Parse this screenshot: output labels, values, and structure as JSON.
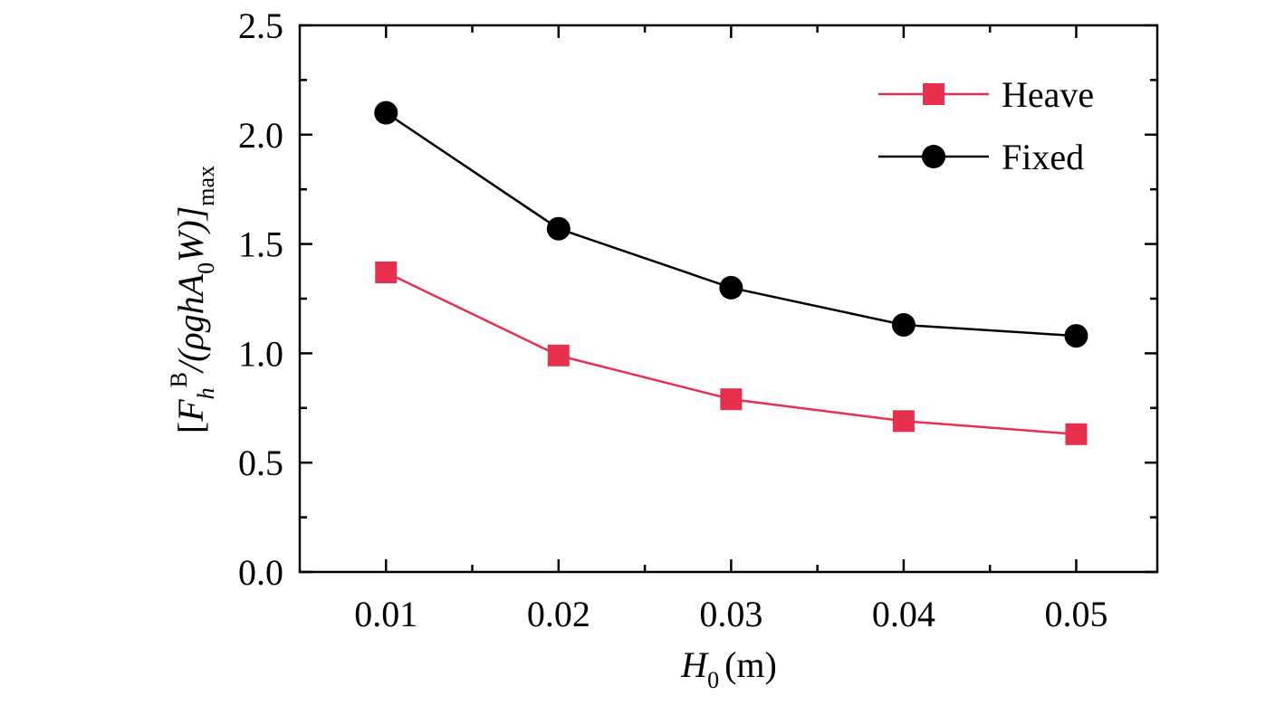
{
  "chart_data": {
    "type": "line",
    "x": [
      0.01,
      0.02,
      0.03,
      0.04,
      0.05
    ],
    "series": [
      {
        "name": "Heave",
        "values": [
          1.37,
          0.99,
          0.79,
          0.69,
          0.63
        ],
        "color": "#e8304e",
        "marker": "square"
      },
      {
        "name": "Fixed",
        "values": [
          2.1,
          1.57,
          1.3,
          1.13,
          1.08
        ],
        "color": "#000000",
        "marker": "circle"
      }
    ],
    "xticks": [
      "0.01",
      "0.02",
      "0.03",
      "0.04",
      "0.05"
    ],
    "yticks": [
      "0.0",
      "0.5",
      "1.0",
      "1.5",
      "2.0",
      "2.5"
    ],
    "xlim": [
      0.005,
      0.0547
    ],
    "ylim": [
      0,
      2.5
    ],
    "xlabel": {
      "symbol": "H",
      "subscript": "0",
      "unit": "(m)"
    },
    "ylabel": {
      "open": "[",
      "symbol": "F",
      "subscript": "h",
      "superscript": "B",
      "mid": "/(ρghA",
      "mid_subscript": "0",
      "tail": "W)]",
      "tail_subscript": "max"
    },
    "grid": false,
    "legend_position": "top-right"
  }
}
